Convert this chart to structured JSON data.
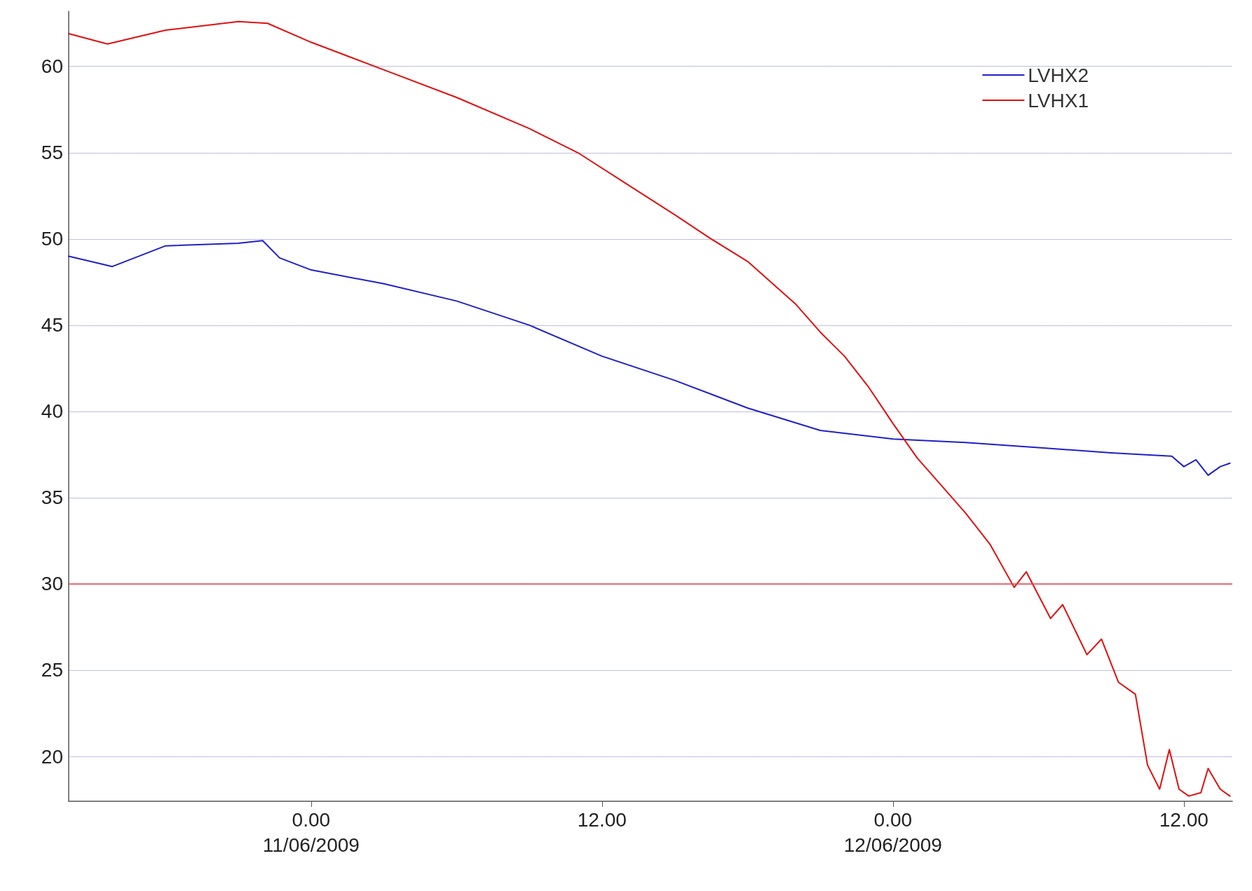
{
  "chart_data": {
    "type": "line",
    "xlim": [
      "2009-06-10T14:00",
      "2009-06-12T14:00"
    ],
    "ylim": [
      17.4,
      63.2
    ],
    "xticks": [
      {
        "value": "2009-06-11T00:00",
        "label": "0.00\n11/06/2009"
      },
      {
        "value": "2009-06-11T12:00",
        "label": "12.00"
      },
      {
        "value": "2009-06-12T00:00",
        "label": "0.00\n12/06/2009"
      },
      {
        "value": "2009-06-12T12:00",
        "label": "12.00"
      }
    ],
    "yticks": [
      20,
      25,
      30,
      35,
      40,
      45,
      50,
      55,
      60
    ],
    "grid": "y",
    "legend": "top right",
    "line_style": "solid",
    "marker": "none",
    "ref_lines": [
      {
        "axis": "y",
        "value": 30,
        "label": null,
        "color": "#e8454f"
      }
    ],
    "series": [
      {
        "name": "LVHX2",
        "color": "#2020c8",
        "x": [
          "2009-06-10T14:00",
          "2009-06-10T15:48",
          "2009-06-10T18:00",
          "2009-06-10T21:00",
          "2009-06-10T22:00",
          "2009-06-10T22:42",
          "2009-06-11T00:00",
          "2009-06-11T03:00",
          "2009-06-11T06:00",
          "2009-06-11T09:00",
          "2009-06-11T12:00",
          "2009-06-11T15:00",
          "2009-06-11T18:00",
          "2009-06-11T21:00",
          "2009-06-12T00:00",
          "2009-06-12T03:00",
          "2009-06-12T06:00",
          "2009-06-12T09:00",
          "2009-06-12T11:30",
          "2009-06-12T12:00",
          "2009-06-12T12:30",
          "2009-06-12T13:00",
          "2009-06-12T13:30",
          "2009-06-12T13:54"
        ],
        "values": [
          49.0,
          48.4,
          49.6,
          49.75,
          49.9,
          48.9,
          48.2,
          47.4,
          46.4,
          45.0,
          43.2,
          41.8,
          40.2,
          38.9,
          38.4,
          38.2,
          37.9,
          37.6,
          37.4,
          36.8,
          37.2,
          36.3,
          36.8,
          37.0
        ]
      },
      {
        "name": "LVHX1",
        "color": "#e01010",
        "x": [
          "2009-06-10T14:00",
          "2009-06-10T15:36",
          "2009-06-10T18:00",
          "2009-06-10T21:00",
          "2009-06-10T22:12",
          "2009-06-11T00:00",
          "2009-06-11T03:00",
          "2009-06-11T06:00",
          "2009-06-11T09:00",
          "2009-06-11T11:00",
          "2009-06-11T13:00",
          "2009-06-11T15:00",
          "2009-06-11T16:30",
          "2009-06-11T18:00",
          "2009-06-11T20:00",
          "2009-06-11T21:00",
          "2009-06-11T22:00",
          "2009-06-11T23:00",
          "2009-06-12T00:00",
          "2009-06-12T01:00",
          "2009-06-12T02:00",
          "2009-06-12T03:00",
          "2009-06-12T04:00",
          "2009-06-12T05:00",
          "2009-06-12T05:30",
          "2009-06-12T06:30",
          "2009-06-12T07:00",
          "2009-06-12T08:00",
          "2009-06-12T08:36",
          "2009-06-12T09:18",
          "2009-06-12T10:00",
          "2009-06-12T10:30",
          "2009-06-12T11:00",
          "2009-06-12T11:24",
          "2009-06-12T11:48",
          "2009-06-12T12:12",
          "2009-06-12T12:42",
          "2009-06-12T13:00",
          "2009-06-12T13:30",
          "2009-06-12T13:54"
        ],
        "values": [
          61.9,
          61.3,
          62.1,
          62.6,
          62.5,
          61.4,
          59.8,
          58.2,
          56.4,
          55.0,
          53.2,
          51.4,
          50.0,
          48.7,
          46.2,
          44.6,
          43.2,
          41.4,
          39.3,
          37.3,
          35.7,
          34.1,
          32.3,
          29.8,
          30.7,
          28.0,
          28.8,
          25.9,
          26.8,
          24.3,
          23.6,
          19.5,
          18.1,
          20.4,
          18.1,
          17.7,
          17.9,
          19.3,
          18.1,
          17.7
        ]
      }
    ]
  }
}
